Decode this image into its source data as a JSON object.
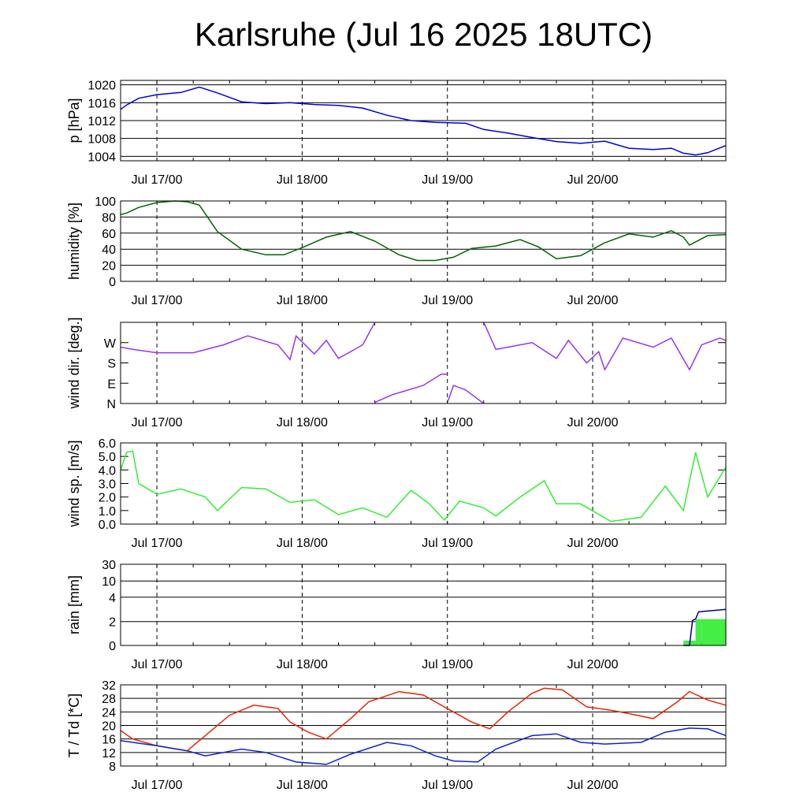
{
  "title": "Karlsruhe (Jul 16 2025 18UTC)",
  "x_axis": {
    "start": "2025-07-16T18:00Z",
    "end": "2025-07-20T22:00Z",
    "tick_labels": [
      "Jul 17/00",
      "Jul 18/00",
      "Jul 19/00",
      "Jul 20/00"
    ],
    "tick_times": [
      "2025-07-17T00:00Z",
      "2025-07-18T00:00Z",
      "2025-07-19T00:00Z",
      "2025-07-20T00:00Z"
    ]
  },
  "colors": {
    "pressure": "#0000dd",
    "humidity": "#006400",
    "wind_dir": "#9933ee",
    "wind_speed": "#33ee33",
    "rain_bar": "#44ee44",
    "rain_line": "#000088",
    "temperature": "#ee2200",
    "dewpoint": "#1122cc"
  },
  "chart_data": [
    {
      "type": "line",
      "ylabel": "p [hPa]",
      "ylim": [
        1003,
        1021
      ],
      "yticks": [
        1004,
        1008,
        1012,
        1016,
        1020
      ],
      "ytick_labels": [
        "1004",
        "1008",
        "1012",
        "1016",
        "1020"
      ],
      "grid": true,
      "series": [
        {
          "color_key": "pressure",
          "x": [
            "2025-07-16T18:00Z",
            "2025-07-16T19:00Z",
            "2025-07-16T21:00Z",
            "2025-07-17T00:00Z",
            "2025-07-17T04:00Z",
            "2025-07-17T07:00Z",
            "2025-07-17T10:00Z",
            "2025-07-17T14:00Z",
            "2025-07-17T18:00Z",
            "2025-07-17T22:00Z",
            "2025-07-18T02:00Z",
            "2025-07-18T06:00Z",
            "2025-07-18T10:00Z",
            "2025-07-18T14:00Z",
            "2025-07-18T18:00Z",
            "2025-07-18T22:00Z",
            "2025-07-19T03:00Z",
            "2025-07-19T06:00Z",
            "2025-07-19T10:00Z",
            "2025-07-19T14:00Z",
            "2025-07-19T18:00Z",
            "2025-07-19T22:00Z",
            "2025-07-20T02:00Z",
            "2025-07-20T06:00Z",
            "2025-07-20T10:00Z",
            "2025-07-20T13:00Z",
            "2025-07-20T15:00Z",
            "2025-07-20T17:00Z",
            "2025-07-20T19:00Z",
            "2025-07-20T22:00Z"
          ],
          "y": [
            1014.5,
            1015.5,
            1017,
            1017.8,
            1018.3,
            1019.5,
            1018.2,
            1016.2,
            1015.8,
            1016,
            1015.6,
            1015.4,
            1014.8,
            1013.2,
            1012,
            1011.6,
            1011.4,
            1010,
            1009.2,
            1008.2,
            1007.3,
            1006.9,
            1007.4,
            1005.8,
            1005.5,
            1005.8,
            1004.7,
            1004.3,
            1004.8,
            1006.4
          ]
        }
      ]
    },
    {
      "type": "line",
      "ylabel": "humidity [%]",
      "ylim": [
        0,
        100
      ],
      "yticks": [
        0,
        20,
        40,
        60,
        80,
        100
      ],
      "ytick_labels": [
        "0",
        "20",
        "40",
        "60",
        "80",
        "100"
      ],
      "grid": true,
      "series": [
        {
          "color_key": "humidity",
          "x": [
            "2025-07-16T18:00Z",
            "2025-07-16T19:00Z",
            "2025-07-16T21:00Z",
            "2025-07-17T00:00Z",
            "2025-07-17T03:00Z",
            "2025-07-17T05:00Z",
            "2025-07-17T07:00Z",
            "2025-07-17T10:00Z",
            "2025-07-17T14:00Z",
            "2025-07-17T18:00Z",
            "2025-07-17T21:00Z",
            "2025-07-18T00:00Z",
            "2025-07-18T04:00Z",
            "2025-07-18T08:00Z",
            "2025-07-18T12:00Z",
            "2025-07-18T16:00Z",
            "2025-07-18T19:00Z",
            "2025-07-18T22:00Z",
            "2025-07-19T01:00Z",
            "2025-07-19T04:00Z",
            "2025-07-19T08:00Z",
            "2025-07-19T12:00Z",
            "2025-07-19T15:00Z",
            "2025-07-19T18:00Z",
            "2025-07-19T22:00Z",
            "2025-07-20T02:00Z",
            "2025-07-20T06:00Z",
            "2025-07-20T10:00Z",
            "2025-07-20T13:00Z",
            "2025-07-20T15:00Z",
            "2025-07-20T16:00Z",
            "2025-07-20T19:00Z",
            "2025-07-20T22:00Z"
          ],
          "y": [
            83,
            85,
            92,
            98,
            100,
            99,
            95,
            62,
            40,
            33,
            33,
            42,
            55,
            62,
            50,
            33,
            26,
            26,
            30,
            41,
            44,
            52,
            43,
            28,
            32,
            48,
            59,
            55,
            63,
            55,
            45,
            57,
            58
          ]
        }
      ]
    },
    {
      "type": "scatter",
      "ylabel": "wind dir. [deg.]",
      "ylim": [
        0,
        360
      ],
      "yticks": [
        0,
        90,
        180,
        270
      ],
      "ytick_labels": [
        "N",
        "E",
        "S",
        "W"
      ],
      "grid": false,
      "series": [
        {
          "color_key": "wind_dir",
          "segments": [
            {
              "x": [
                "2025-07-16T18:00Z",
                "2025-07-16T20:00Z",
                "2025-07-17T00:00Z",
                "2025-07-17T06:00Z",
                "2025-07-17T11:00Z",
                "2025-07-17T15:00Z",
                "2025-07-17T20:00Z",
                "2025-07-17T22:00Z",
                "2025-07-17T23:00Z",
                "2025-07-18T02:00Z",
                "2025-07-18T04:00Z",
                "2025-07-18T06:00Z",
                "2025-07-18T10:00Z",
                "2025-07-18T12:00Z"
              ],
              "y": [
                250,
                240,
                225,
                225,
                260,
                300,
                260,
                195,
                300,
                220,
                280,
                200,
                260,
                360
              ]
            },
            {
              "x": [
                "2025-07-18T12:00Z",
                "2025-07-18T15:00Z",
                "2025-07-18T20:00Z",
                "2025-07-18T23:00Z",
                "2025-07-18T23:55Z"
              ],
              "y": [
                5,
                40,
                80,
                130,
                130
              ]
            },
            {
              "x": [
                "2025-07-19T00:05Z",
                "2025-07-19T01:00Z",
                "2025-07-19T03:00Z",
                "2025-07-19T06:00Z"
              ],
              "y": [
                10,
                80,
                60,
                0
              ]
            },
            {
              "x": [
                "2025-07-19T06:00Z",
                "2025-07-19T08:00Z",
                "2025-07-19T10:00Z",
                "2025-07-19T14:00Z",
                "2025-07-19T18:00Z",
                "2025-07-19T20:00Z",
                "2025-07-19T23:00Z",
                "2025-07-20T01:00Z",
                "2025-07-20T02:00Z",
                "2025-07-20T05:00Z",
                "2025-07-20T10:00Z",
                "2025-07-20T13:00Z",
                "2025-07-20T16:00Z",
                "2025-07-20T18:00Z",
                "2025-07-20T21:00Z",
                "2025-07-20T22:00Z"
              ],
              "y": [
                360,
                240,
                250,
                270,
                200,
                280,
                180,
                230,
                150,
                290,
                250,
                290,
                150,
                260,
                290,
                280
              ]
            }
          ]
        }
      ]
    },
    {
      "type": "line",
      "ylabel": "wind sp. [m/s]",
      "ylim": [
        0,
        6
      ],
      "yticks": [
        0,
        1,
        2,
        3,
        4,
        5,
        6
      ],
      "ytick_labels": [
        "0.0",
        "1.0",
        "2.0",
        "3.0",
        "4.0",
        "5.0",
        "6.0"
      ],
      "grid": false,
      "series": [
        {
          "color_key": "wind_speed",
          "x": [
            "2025-07-16T18:00Z",
            "2025-07-16T19:00Z",
            "2025-07-16T20:00Z",
            "2025-07-16T21:00Z",
            "2025-07-17T00:00Z",
            "2025-07-17T04:00Z",
            "2025-07-17T08:00Z",
            "2025-07-17T10:00Z",
            "2025-07-17T14:00Z",
            "2025-07-17T18:00Z",
            "2025-07-17T22:00Z",
            "2025-07-18T02:00Z",
            "2025-07-18T06:00Z",
            "2025-07-18T10:00Z",
            "2025-07-18T14:00Z",
            "2025-07-18T18:00Z",
            "2025-07-18T21:00Z",
            "2025-07-18T23:30Z",
            "2025-07-19T02:00Z",
            "2025-07-19T06:00Z",
            "2025-07-19T08:00Z",
            "2025-07-19T12:00Z",
            "2025-07-19T16:00Z",
            "2025-07-19T18:00Z",
            "2025-07-19T22:00Z",
            "2025-07-20T03:00Z",
            "2025-07-20T08:00Z",
            "2025-07-20T12:00Z",
            "2025-07-20T15:00Z",
            "2025-07-20T17:00Z",
            "2025-07-20T19:00Z",
            "2025-07-20T22:00Z"
          ],
          "y": [
            4.0,
            5.3,
            5.4,
            3.0,
            2.2,
            2.6,
            2.0,
            1.0,
            2.7,
            2.6,
            1.6,
            1.8,
            0.7,
            1.2,
            0.5,
            2.5,
            1.5,
            0.3,
            1.7,
            1.2,
            0.6,
            2.0,
            3.2,
            1.5,
            1.5,
            0.2,
            0.5,
            2.8,
            1.0,
            5.3,
            2.0,
            4.2
          ]
        }
      ]
    },
    {
      "type": "area",
      "ylabel": "rain [mm]",
      "ylim": [
        0,
        30
      ],
      "yticks": [
        0,
        2,
        4,
        10,
        30
      ],
      "ytick_labels": [
        "0",
        "2",
        "4",
        "10",
        "30"
      ],
      "grid": true,
      "series": [
        {
          "color_key": "rain_bar",
          "kind": "bars",
          "x": [
            "2025-07-20T15:00Z",
            "2025-07-20T16:00Z",
            "2025-07-20T17:00Z",
            "2025-07-20T18:00Z"
          ],
          "y": [
            0.4,
            0.4,
            2.2,
            2.2
          ]
        },
        {
          "color_key": "rain_line",
          "kind": "line",
          "x": [
            "2025-07-20T15:00Z",
            "2025-07-20T16:00Z",
            "2025-07-20T16:30Z",
            "2025-07-20T17:00Z",
            "2025-07-20T17:30Z",
            "2025-07-20T22:00Z"
          ],
          "y": [
            0,
            0,
            2.1,
            2.2,
            2.8,
            3.0
          ]
        }
      ]
    },
    {
      "type": "line",
      "ylabel": "T / Td [*C]",
      "ylim": [
        8,
        32
      ],
      "yticks": [
        8,
        12,
        16,
        20,
        24,
        28,
        32
      ],
      "ytick_labels": [
        "8",
        "12",
        "16",
        "20",
        "24",
        "28",
        "32"
      ],
      "grid": true,
      "series": [
        {
          "color_key": "temperature",
          "x": [
            "2025-07-16T18:00Z",
            "2025-07-16T20:00Z",
            "2025-07-17T00:00Z",
            "2025-07-17T05:00Z",
            "2025-07-17T08:00Z",
            "2025-07-17T12:00Z",
            "2025-07-17T16:00Z",
            "2025-07-17T20:00Z",
            "2025-07-17T22:00Z",
            "2025-07-18T01:00Z",
            "2025-07-18T04:00Z",
            "2025-07-18T08:00Z",
            "2025-07-18T11:00Z",
            "2025-07-18T16:00Z",
            "2025-07-18T20:00Z",
            "2025-07-18T23:00Z",
            "2025-07-19T04:00Z",
            "2025-07-19T07:00Z",
            "2025-07-19T10:00Z",
            "2025-07-19T14:00Z",
            "2025-07-19T16:00Z",
            "2025-07-19T19:00Z",
            "2025-07-19T23:00Z",
            "2025-07-20T03:00Z",
            "2025-07-20T06:00Z",
            "2025-07-20T10:00Z",
            "2025-07-20T14:00Z",
            "2025-07-20T16:00Z",
            "2025-07-20T19:00Z",
            "2025-07-20T22:00Z"
          ],
          "y": [
            18.5,
            16,
            14,
            12.5,
            17,
            23,
            26,
            25,
            21,
            18,
            16,
            22,
            27,
            30,
            29,
            26,
            21,
            19,
            24,
            29.5,
            31,
            30.5,
            25.5,
            24.5,
            23.5,
            22,
            27,
            30,
            27.5,
            26
          ]
        },
        {
          "color_key": "dewpoint",
          "x": [
            "2025-07-16T18:00Z",
            "2025-07-16T20:00Z",
            "2025-07-17T00:00Z",
            "2025-07-17T05:00Z",
            "2025-07-17T08:00Z",
            "2025-07-17T14:00Z",
            "2025-07-17T18:00Z",
            "2025-07-17T23:00Z",
            "2025-07-18T04:00Z",
            "2025-07-18T08:00Z",
            "2025-07-18T14:00Z",
            "2025-07-18T18:00Z",
            "2025-07-18T22:00Z",
            "2025-07-19T01:00Z",
            "2025-07-19T05:00Z",
            "2025-07-19T08:00Z",
            "2025-07-19T14:00Z",
            "2025-07-19T18:00Z",
            "2025-07-19T22:00Z",
            "2025-07-20T02:00Z",
            "2025-07-20T08:00Z",
            "2025-07-20T12:00Z",
            "2025-07-20T16:00Z",
            "2025-07-20T19:00Z",
            "2025-07-20T22:00Z"
          ],
          "y": [
            15.5,
            15,
            14,
            12.5,
            11,
            13,
            12,
            9.2,
            8.5,
            11.5,
            15,
            14,
            11,
            9.5,
            9.2,
            13,
            17,
            17.5,
            15,
            14.5,
            15,
            18,
            19.2,
            19,
            17
          ]
        }
      ]
    }
  ]
}
